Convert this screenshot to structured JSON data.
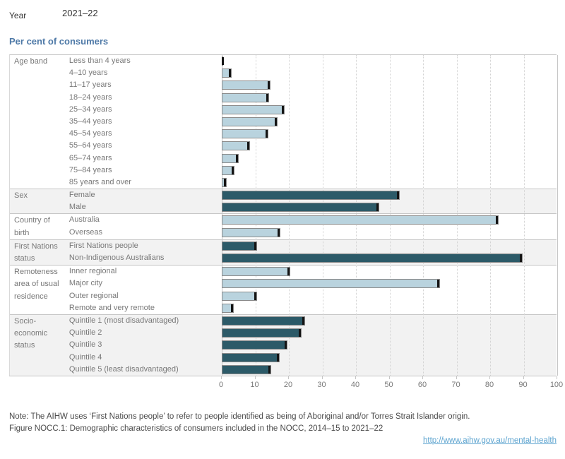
{
  "year_control": {
    "label": "Year",
    "value": "2021–22"
  },
  "title": "Per cent of consumers",
  "chart_data": {
    "type": "bar",
    "orientation": "horizontal",
    "xlabel": "Per cent of consumers",
    "xlim": [
      0,
      100
    ],
    "x_ticks": [
      0,
      10,
      20,
      30,
      40,
      50,
      60,
      70,
      80,
      90,
      100
    ],
    "grid": "vertical-dotted",
    "legend_position": "none",
    "palette": {
      "light_bar": "#b9d3de",
      "dark_bar": "#2c5a68",
      "bar_border": "#8a8a8a",
      "gantt_tick": "#141414",
      "band_shade": "#f2f2f2",
      "title_blue": "#4e79a7",
      "link_blue": "#5ba3cf"
    },
    "sections": [
      {
        "name": "Age band",
        "tone": "light",
        "shaded": false,
        "rows": [
          {
            "label": "Less than 4 years",
            "value": 0.3
          },
          {
            "label": "4–10 years",
            "value": 3.0
          },
          {
            "label": "11–17 years",
            "value": 14.6
          },
          {
            "label": "18–24 years",
            "value": 14.1
          },
          {
            "label": "25–34 years",
            "value": 18.9
          },
          {
            "label": "35–44 years",
            "value": 16.6
          },
          {
            "label": "45–54 years",
            "value": 13.9
          },
          {
            "label": "55–64 years",
            "value": 8.5
          },
          {
            "label": "65–74 years",
            "value": 5.2
          },
          {
            "label": "75–84 years",
            "value": 3.8
          },
          {
            "label": "85 years and over",
            "value": 1.5
          }
        ]
      },
      {
        "name": "Sex",
        "tone": "dark",
        "shaded": true,
        "rows": [
          {
            "label": "Female",
            "value": 53.1
          },
          {
            "label": "Male",
            "value": 47.1
          }
        ]
      },
      {
        "name": "Country of birth",
        "tone": "light",
        "shaded": false,
        "rows": [
          {
            "label": "Australia",
            "value": 82.7
          },
          {
            "label": "Overseas",
            "value": 17.6
          }
        ]
      },
      {
        "name": "First Nations status",
        "tone": "dark",
        "shaded": true,
        "rows": [
          {
            "label": "First Nations people",
            "value": 10.5
          },
          {
            "label": "Non-Indigenous Australians",
            "value": 89.7
          }
        ]
      },
      {
        "name": "Remoteness area of usual residence",
        "tone": "light",
        "shaded": false,
        "rows": [
          {
            "label": "Inner regional",
            "value": 20.4
          },
          {
            "label": "Major city",
            "value": 65.2
          },
          {
            "label": "Outer regional",
            "value": 10.7
          },
          {
            "label": "Remote and very remote",
            "value": 3.6
          }
        ]
      },
      {
        "name": "Socio-economic status",
        "tone": "dark",
        "shaded": true,
        "rows": [
          {
            "label": "Quintile 1 (most disadvantaged)",
            "value": 25.0
          },
          {
            "label": "Quintile 2",
            "value": 23.8
          },
          {
            "label": "Quintile 3",
            "value": 19.6
          },
          {
            "label": "Quintile 4",
            "value": 17.3
          },
          {
            "label": "Quintile 5 (least disadvantaged)",
            "value": 14.9
          }
        ]
      }
    ]
  },
  "notes": {
    "note": "Note: The AIHW uses ‘First Nations people’ to refer to people identified as being of Aboriginal and/or Torres Strait Islander origin.",
    "figure_caption": "Figure NOCC.1: Demographic characteristics of consumers included in the NOCC, 2014–15 to 2021–22",
    "link": "http://www.aihw.gov.au/mental-health"
  }
}
